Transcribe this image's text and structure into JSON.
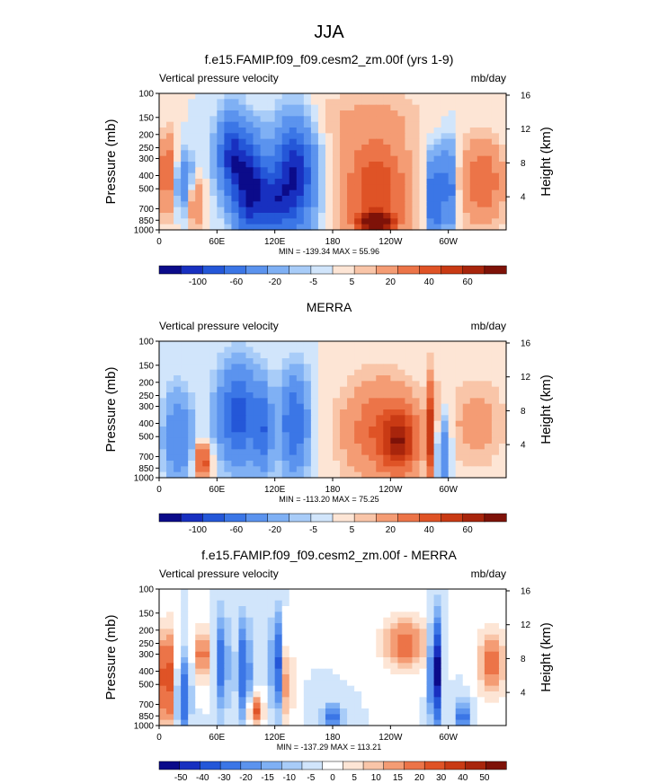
{
  "figure": {
    "main_title": "JJA",
    "left_ylabel": "Pressure (mb)",
    "right_ylabel": "Height (km)"
  },
  "chart_data": [
    {
      "type": "heatmap",
      "title": "f.e15.FAMIP.f09_f09.cesm2_zm.00f (yrs 1-9)",
      "variable": "Vertical pressure velocity",
      "units": "mb/day",
      "xlabel": "",
      "ylabel": "Pressure (mb)",
      "right_ylabel": "Height (km)",
      "x_ticks": [
        "0",
        "60E",
        "120E",
        "180",
        "120W",
        "60W"
      ],
      "x_tick_lon": [
        0,
        60,
        120,
        180,
        240,
        300
      ],
      "xlim": [
        0,
        360
      ],
      "y_ticks": [
        100,
        150,
        200,
        250,
        300,
        400,
        500,
        700,
        850,
        1000
      ],
      "ylim": [
        1000,
        100
      ],
      "y_scale": "log",
      "right_ticks": [
        4,
        8,
        12,
        16
      ],
      "min_max_label": "MIN = -139.34   MAX =  55.96",
      "min": -139.34,
      "max": 55.96,
      "colorbar_labels": [
        "-100",
        "-60",
        "-20",
        "-5",
        "5",
        "20",
        "40",
        "60"
      ],
      "colorbar_levels": [
        -120,
        -100,
        -80,
        -60,
        -40,
        -20,
        -10,
        -5,
        0,
        5,
        10,
        20,
        30,
        40,
        50,
        60
      ],
      "colorbar_colors": [
        "#0b0b8a",
        "#1830c0",
        "#2457d8",
        "#3b76e6",
        "#5b93ee",
        "#7fb0f4",
        "#a8ccf8",
        "#d1e5fb",
        "#fde5d5",
        "#f9c5a8",
        "#f49c74",
        "#ec7448",
        "#df5326",
        "#c93a14",
        "#a8250c",
        "#7e1208"
      ],
      "features": [
        {
          "lon": 25,
          "p": 450,
          "value": -40,
          "wlon": 8,
          "wp": 0.35
        },
        {
          "lon": 10,
          "p": 400,
          "value": 35,
          "wlon": 8,
          "wp": 0.45
        },
        {
          "lon": 37,
          "p": 600,
          "value": 30,
          "wlon": 6,
          "wp": 0.3
        },
        {
          "lon": 75,
          "p": 280,
          "value": -80,
          "wlon": 10,
          "wp": 0.45
        },
        {
          "lon": 95,
          "p": 500,
          "value": -110,
          "wlon": 12,
          "wp": 0.55
        },
        {
          "lon": 140,
          "p": 400,
          "value": -100,
          "wlon": 14,
          "wp": 0.6
        },
        {
          "lon": 120,
          "p": 650,
          "value": -60,
          "wlon": 10,
          "wp": 0.35
        },
        {
          "lon": 225,
          "p": 500,
          "value": 40,
          "wlon": 24,
          "wp": 0.6
        },
        {
          "lon": 225,
          "p": 880,
          "value": 55,
          "wlon": 14,
          "wp": 0.12
        },
        {
          "lon": 285,
          "p": 600,
          "value": -80,
          "wlon": 4,
          "wp": 0.5
        },
        {
          "lon": 300,
          "p": 500,
          "value": -60,
          "wlon": 5,
          "wp": 0.5
        },
        {
          "lon": 335,
          "p": 450,
          "value": 30,
          "wlon": 16,
          "wp": 0.5
        },
        {
          "lon": 215,
          "p": 150,
          "value": 10,
          "wlon": 45,
          "wp": 0.35
        }
      ]
    },
    {
      "type": "heatmap",
      "title": "MERRA",
      "variable": "Vertical pressure velocity",
      "units": "mb/day",
      "xlabel": "",
      "ylabel": "Pressure (mb)",
      "right_ylabel": "Height (km)",
      "x_ticks": [
        "0",
        "60E",
        "120E",
        "180",
        "120W",
        "60W"
      ],
      "x_tick_lon": [
        0,
        60,
        120,
        180,
        240,
        300
      ],
      "xlim": [
        0,
        360
      ],
      "y_ticks": [
        100,
        150,
        200,
        250,
        300,
        400,
        500,
        700,
        850,
        1000
      ],
      "ylim": [
        1000,
        100
      ],
      "y_scale": "log",
      "right_ticks": [
        4,
        8,
        12,
        16
      ],
      "min_max_label": "MIN = -113.20   MAX =  75.25",
      "min": -113.2,
      "max": 75.25,
      "colorbar_labels": [
        "-100",
        "-60",
        "-20",
        "-5",
        "5",
        "20",
        "40",
        "60"
      ],
      "colorbar_levels": [
        -120,
        -100,
        -80,
        -60,
        -40,
        -20,
        -10,
        -5,
        0,
        5,
        10,
        20,
        30,
        40,
        50,
        60
      ],
      "colorbar_colors": [
        "#0b0b8a",
        "#1830c0",
        "#2457d8",
        "#3b76e6",
        "#5b93ee",
        "#7fb0f4",
        "#a8ccf8",
        "#d1e5fb",
        "#fde5d5",
        "#f9c5a8",
        "#f49c74",
        "#ec7448",
        "#df5326",
        "#c93a14",
        "#a8250c",
        "#7e1208"
      ],
      "features": [
        {
          "lon": 20,
          "p": 500,
          "value": -40,
          "wlon": 10,
          "wp": 0.5
        },
        {
          "lon": 45,
          "p": 750,
          "value": 40,
          "wlon": 6,
          "wp": 0.2
        },
        {
          "lon": 82,
          "p": 350,
          "value": -70,
          "wlon": 14,
          "wp": 0.55
        },
        {
          "lon": 108,
          "p": 450,
          "value": -50,
          "wlon": 6,
          "wp": 0.5
        },
        {
          "lon": 140,
          "p": 400,
          "value": -60,
          "wlon": 10,
          "wp": 0.55
        },
        {
          "lon": 230,
          "p": 450,
          "value": 30,
          "wlon": 28,
          "wp": 0.6
        },
        {
          "lon": 250,
          "p": 550,
          "value": 40,
          "wlon": 12,
          "wp": 0.35
        },
        {
          "lon": 283,
          "p": 450,
          "value": 50,
          "wlon": 3,
          "wp": 0.6
        },
        {
          "lon": 295,
          "p": 650,
          "value": -40,
          "wlon": 5,
          "wp": 0.4
        },
        {
          "lon": 330,
          "p": 400,
          "value": 15,
          "wlon": 20,
          "wp": 0.5
        }
      ]
    },
    {
      "type": "heatmap",
      "title": "f.e15.FAMIP.f09_f09.cesm2_zm.00f - MERRA",
      "variable": "Vertical pressure velocity",
      "units": "mb/day",
      "xlabel": "",
      "ylabel": "Pressure (mb)",
      "right_ylabel": "Height (km)",
      "x_ticks": [
        "0",
        "60E",
        "120E",
        "180",
        "120W",
        "60W"
      ],
      "x_tick_lon": [
        0,
        60,
        120,
        180,
        240,
        300
      ],
      "xlim": [
        0,
        360
      ],
      "y_ticks": [
        100,
        150,
        200,
        250,
        300,
        400,
        500,
        700,
        850,
        1000
      ],
      "ylim": [
        1000,
        100
      ],
      "y_scale": "log",
      "right_ticks": [
        4,
        8,
        12,
        16
      ],
      "min_max_label": "MIN = -137.29   MAX = 113.21",
      "min": -137.29,
      "max": 113.21,
      "colorbar_labels": [
        "-50",
        "-40",
        "-30",
        "-20",
        "-15",
        "-10",
        "-5",
        "0",
        "5",
        "10",
        "15",
        "20",
        "30",
        "40",
        "50"
      ],
      "colorbar_levels": [
        -60,
        -50,
        -40,
        -30,
        -20,
        -15,
        -10,
        -5,
        0,
        5,
        10,
        15,
        20,
        30,
        40,
        50,
        60
      ],
      "colorbar_colors": [
        "#0b0b8a",
        "#1830c0",
        "#2457d8",
        "#3b76e6",
        "#5b93ee",
        "#7fb0f4",
        "#a8ccf8",
        "#d1e5fb",
        "#ffffff",
        "#fde5d5",
        "#f9c5a8",
        "#f49c74",
        "#ec7448",
        "#df5326",
        "#c93a14",
        "#a8250c",
        "#7e1208"
      ],
      "features": [
        {
          "lon": 8,
          "p": 450,
          "value": 40,
          "wlon": 6,
          "wp": 0.55
        },
        {
          "lon": 25,
          "p": 600,
          "value": -30,
          "wlon": 5,
          "wp": 0.45
        },
        {
          "lon": 45,
          "p": 300,
          "value": 25,
          "wlon": 6,
          "wp": 0.3
        },
        {
          "lon": 65,
          "p": 350,
          "value": -25,
          "wlon": 5,
          "wp": 0.6
        },
        {
          "lon": 88,
          "p": 400,
          "value": -30,
          "wlon": 5,
          "wp": 0.6
        },
        {
          "lon": 100,
          "p": 780,
          "value": 35,
          "wlon": 5,
          "wp": 0.15
        },
        {
          "lon": 122,
          "p": 350,
          "value": -35,
          "wlon": 4,
          "wp": 0.55
        },
        {
          "lon": 133,
          "p": 500,
          "value": 20,
          "wlon": 4,
          "wp": 0.5
        },
        {
          "lon": 180,
          "p": 850,
          "value": -25,
          "wlon": 8,
          "wp": 0.15
        },
        {
          "lon": 255,
          "p": 250,
          "value": 25,
          "wlon": 16,
          "wp": 0.3
        },
        {
          "lon": 287,
          "p": 400,
          "value": -60,
          "wlon": 4,
          "wp": 0.6
        },
        {
          "lon": 315,
          "p": 850,
          "value": -25,
          "wlon": 6,
          "wp": 0.2
        },
        {
          "lon": 345,
          "p": 350,
          "value": 25,
          "wlon": 10,
          "wp": 0.4
        }
      ]
    }
  ]
}
